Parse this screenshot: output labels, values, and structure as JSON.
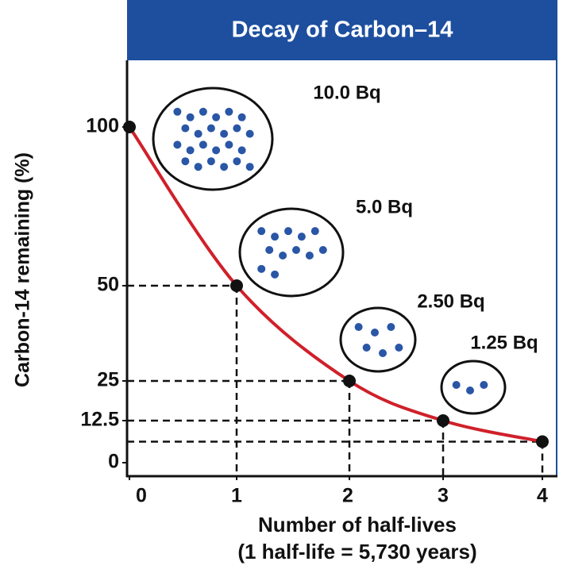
{
  "chart_data": {
    "type": "line",
    "title": "Decay of Carbon–14",
    "x_label": "Number of half-lives",
    "x_sublabel": "(1 half-life = 5,730 years)",
    "y_label": "Carbon-14 remaining (%)",
    "x": [
      0,
      1,
      2,
      3,
      4
    ],
    "series": [
      {
        "color": "#d0202a",
        "values": [
          100,
          50,
          25,
          12.5,
          6.25
        ]
      }
    ],
    "xlim": [
      0,
      4
    ],
    "xticks": [
      0,
      1,
      2,
      3,
      4
    ],
    "ylim": [
      0,
      100
    ],
    "yticks": [
      0,
      12.5,
      25,
      50,
      100
    ],
    "annotations": [
      "10.0 Bq",
      "5.0 Bq",
      "2.50 Bq",
      "1.25 Bq"
    ]
  }
}
